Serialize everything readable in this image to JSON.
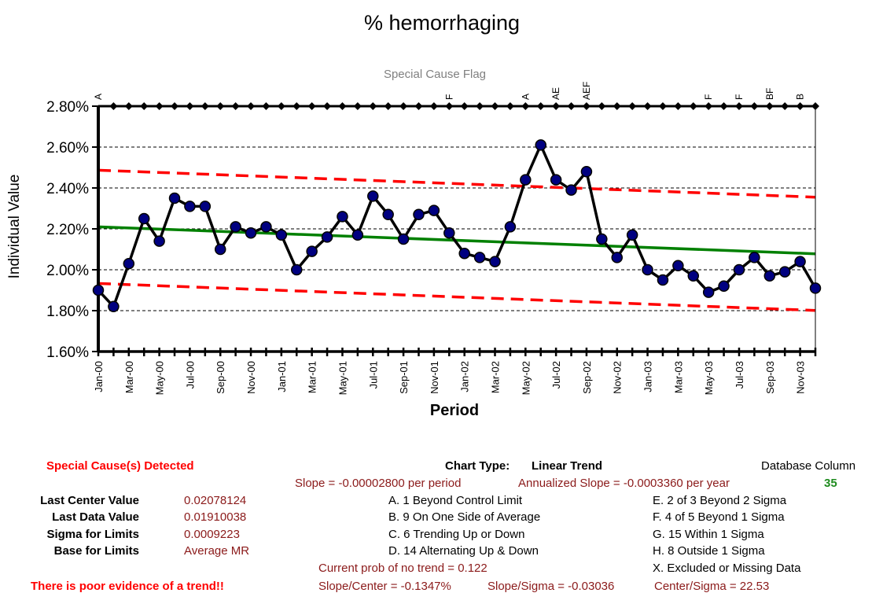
{
  "chart_data": {
    "type": "line",
    "title": "% hemorrhaging",
    "subtitle": "Special Cause Flag",
    "xlabel": "Period",
    "ylabel": "Individual Value",
    "ylim": [
      0.016,
      0.028
    ],
    "y_ticks": [
      0.016,
      0.018,
      0.02,
      0.022,
      0.024,
      0.026,
      0.028
    ],
    "y_tick_labels": [
      "1.60%",
      "1.80%",
      "2.00%",
      "2.20%",
      "2.40%",
      "2.60%",
      "2.80%"
    ],
    "grid": "horizontal dashed",
    "x_tick_labels": [
      "Jan-00",
      "Mar-00",
      "May-00",
      "Jul-00",
      "Sep-00",
      "Nov-00",
      "Jan-01",
      "Mar-01",
      "May-01",
      "Jul-01",
      "Sep-01",
      "Nov-01",
      "Jan-02",
      "Mar-02",
      "May-02",
      "Jul-02",
      "Sep-02",
      "Nov-02",
      "Jan-03",
      "Mar-03",
      "May-03",
      "Jul-03",
      "Sep-03",
      "Nov-03"
    ],
    "series": [
      {
        "kind": "data",
        "color": "#000000",
        "marker_color": "#000080",
        "values": [
          0.019,
          0.0182,
          0.0203,
          0.0225,
          0.0214,
          0.0235,
          0.0231,
          0.0231,
          0.021,
          0.0221,
          0.0218,
          0.0221,
          0.0217,
          0.02,
          0.0209,
          0.0216,
          0.0226,
          0.0217,
          0.0236,
          0.0227,
          0.0215,
          0.0227,
          0.0229,
          0.0218,
          0.0208,
          0.0206,
          0.0204,
          0.0221,
          0.0244,
          0.0261,
          0.0244,
          0.0239,
          0.0248,
          0.0215,
          0.0206,
          0.0217,
          0.02,
          0.0195,
          0.0202,
          0.0197,
          0.0189,
          0.0192,
          0.02,
          0.0206,
          0.0197,
          0.0199,
          0.0204,
          0.0191
        ]
      },
      {
        "kind": "center",
        "color": "#008000",
        "start": 0.0221,
        "end": 0.02078
      },
      {
        "kind": "upper_limit",
        "color": "#ff0000",
        "start": 0.02487,
        "end": 0.02355
      },
      {
        "kind": "lower_limit",
        "color": "#ff0000",
        "start": 0.01933,
        "end": 0.01801
      }
    ],
    "flags": [
      {
        "index": 0,
        "label": "A"
      },
      {
        "index": 23,
        "label": "F"
      },
      {
        "index": 28,
        "label": "A"
      },
      {
        "index": 30,
        "label": "AE"
      },
      {
        "index": 32,
        "label": "AEF"
      },
      {
        "index": 40,
        "label": "F"
      },
      {
        "index": 42,
        "label": "F"
      },
      {
        "index": 44,
        "label": "BF"
      },
      {
        "index": 46,
        "label": "B"
      }
    ]
  },
  "info": {
    "special_cause": "Special Cause(s) Detected",
    "chart_type_label": "Chart Type:",
    "chart_type_value": "Linear Trend",
    "database_column_label": "Database Column",
    "database_column_value": "35",
    "slope": "Slope = -0.00002800 per period",
    "annualized_slope": "Annualized Slope = -0.0003360 per year",
    "stats": [
      {
        "label": "Last Center Value",
        "value": "0.02078124"
      },
      {
        "label": "Last Data Value",
        "value": "0.01910038"
      },
      {
        "label": "Sigma for Limits",
        "value": "0.0009223"
      },
      {
        "label": "Base for Limits",
        "value": "Average MR"
      }
    ],
    "rules_left": [
      "A. 1 Beyond Control Limit",
      "B. 9 On One Side of Average",
      "C. 6 Trending Up or Down",
      "D. 14 Alternating  Up & Down"
    ],
    "rules_right": [
      "E. 2 of 3 Beyond 2 Sigma",
      "F. 4 of 5 Beyond 1 Sigma",
      "G. 15 Within 1 Sigma",
      "H. 8 Outside 1 Sigma",
      "X. Excluded or Missing Data"
    ],
    "prob_no_trend": "Current prob of no trend = 0.122",
    "slope_center": "Slope/Center = -0.1347%",
    "slope_sigma": "Slope/Sigma = -0.03036",
    "center_sigma": "Center/Sigma = 22.53",
    "evidence": "There is poor evidence of a trend!!"
  }
}
